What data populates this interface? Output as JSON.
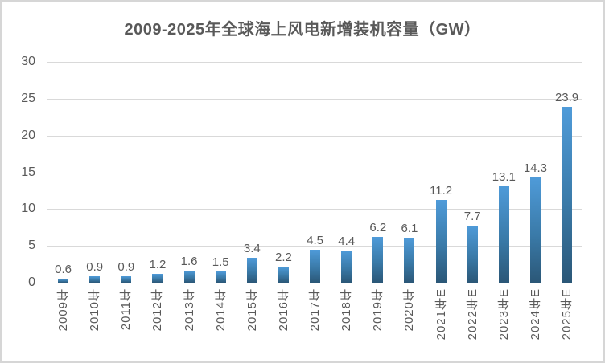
{
  "page": {
    "background_color": "#ffffff",
    "border_color": "#d6d6d6"
  },
  "chart_data": {
    "type": "bar",
    "title": "2009-2025年全球海上风电新增装机容量（GW）",
    "categories": [
      "2009年",
      "2010年",
      "2011年",
      "2012年",
      "2013年",
      "2014年",
      "2015年",
      "2016年",
      "2017年",
      "2018年",
      "2019年",
      "2020年",
      "2021年E",
      "2022年E",
      "2023年E",
      "2024年E",
      "2025年E"
    ],
    "values": [
      0.6,
      0.9,
      0.9,
      1.2,
      1.6,
      1.5,
      3.4,
      2.2,
      4.5,
      4.4,
      6.2,
      6.1,
      11.2,
      7.7,
      13.1,
      14.3,
      23.9
    ],
    "data_labels": [
      "0.6",
      "0.9",
      "0.9",
      "1.2",
      "1.6",
      "1.5",
      "3.4",
      "2.2",
      "4.5",
      "4.4",
      "6.2",
      "6.1",
      "11.2",
      "7.7",
      "13.1",
      "14.3",
      "23.9"
    ],
    "yticks": [
      0,
      5,
      10,
      15,
      20,
      25,
      30
    ],
    "ylim": [
      0,
      30
    ],
    "xlabel": "",
    "ylabel": "",
    "grid": true,
    "legend": "none",
    "colors": {
      "bar_gradient_top": "#4f9bd9",
      "bar_gradient_bottom": "#2b5777",
      "gridline": "#d9d9d9",
      "text": "#595959"
    }
  }
}
